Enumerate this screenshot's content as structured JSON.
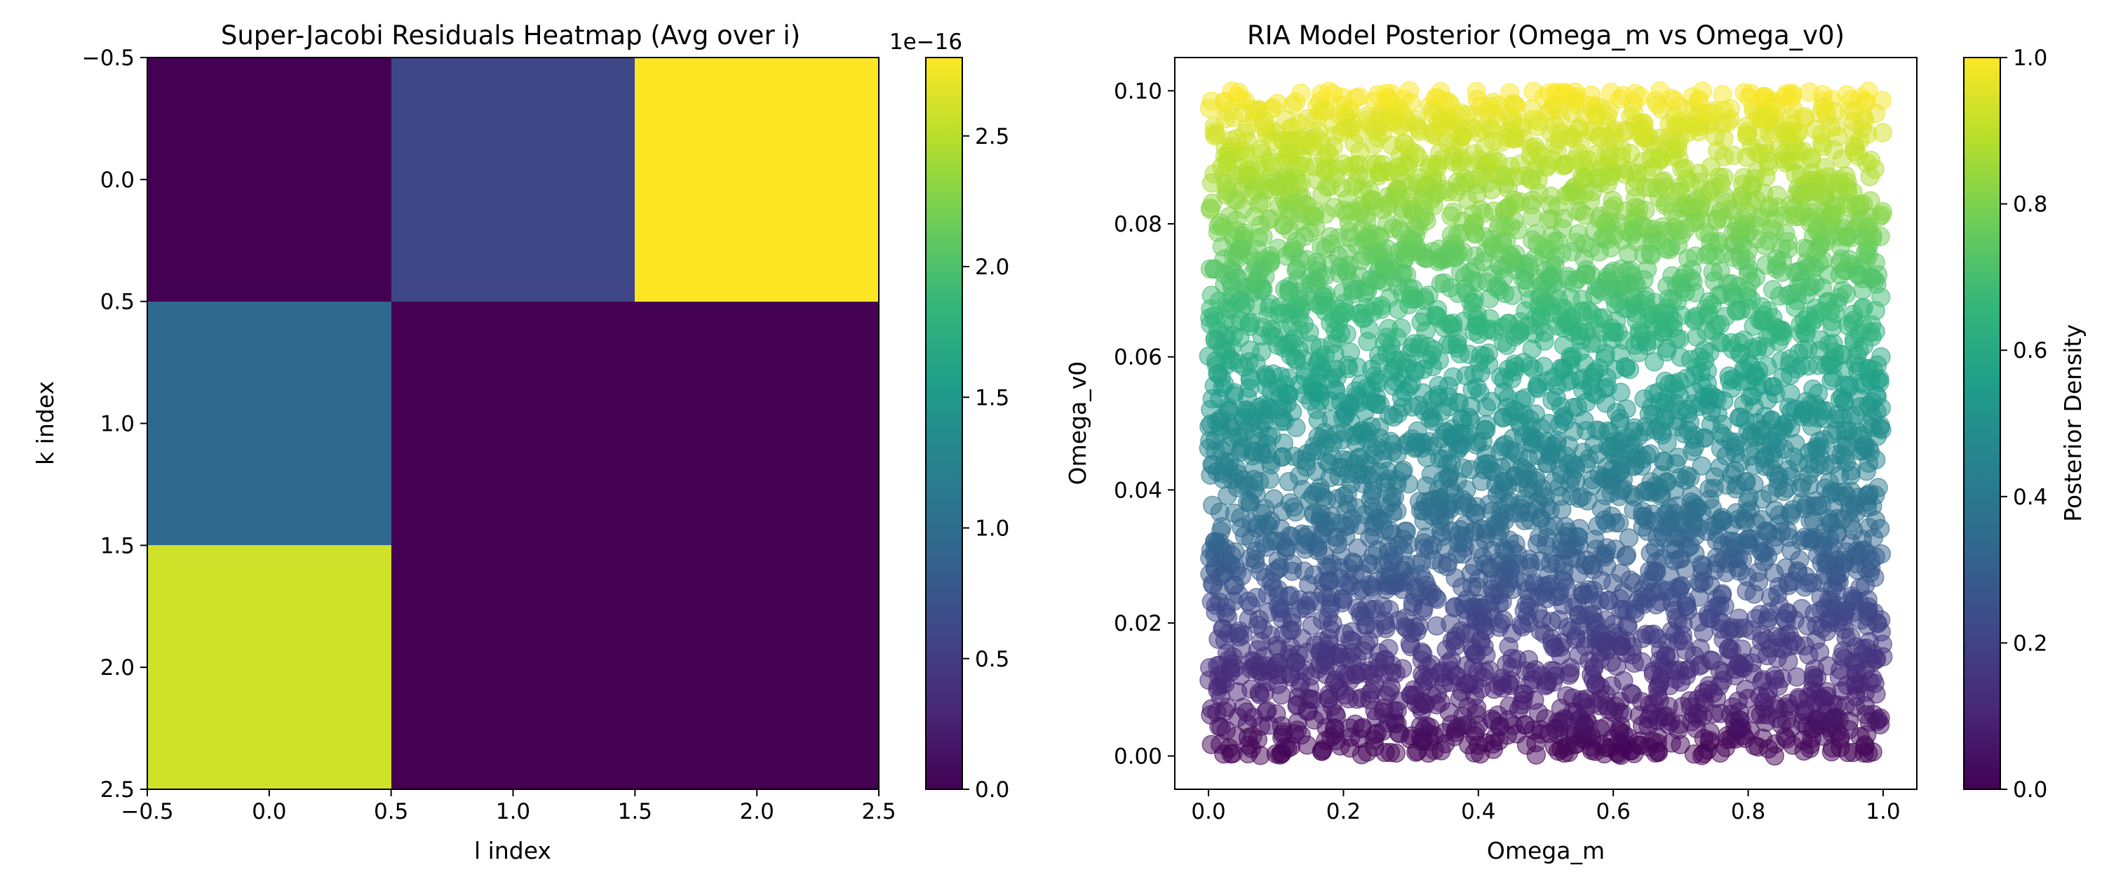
{
  "colormap": [
    "#440154",
    "#482878",
    "#3e4989",
    "#31688e",
    "#26828e",
    "#1f9e89",
    "#35b779",
    "#6ece58",
    "#b5de2b",
    "#fde725"
  ],
  "chart_data": [
    {
      "type": "heatmap",
      "title": "Super-Jacobi Residuals Heatmap (Avg over i)",
      "xlabel": "l index",
      "ylabel": "k index",
      "x_categories": [
        0,
        1,
        2
      ],
      "y_categories": [
        0,
        1,
        2
      ],
      "values": [
        [
          0.0,
          6e-17,
          2.8e-16
        ],
        [
          9.5e-17,
          0.0,
          0.0
        ],
        [
          2.6e-16,
          0.0,
          0.0
        ]
      ],
      "xlim": [
        -0.5,
        2.5
      ],
      "ylim": [
        2.5,
        -0.5
      ],
      "x_ticks": [
        "−0.5",
        "0.0",
        "0.5",
        "1.0",
        "1.5",
        "2.0",
        "2.5"
      ],
      "y_ticks": [
        "−0.5",
        "0.0",
        "0.5",
        "1.0",
        "1.5",
        "2.0",
        "2.5"
      ],
      "colorbar": {
        "range": [
          0,
          2.8e-16
        ],
        "ticks": [
          "0.0",
          "0.5",
          "1.0",
          "1.5",
          "2.0",
          "2.5"
        ],
        "tick_values": [
          0.0,
          0.5,
          1.0,
          1.5,
          2.0,
          2.5
        ],
        "scale_label": "1e−16",
        "max_scaled": 2.8
      }
    },
    {
      "type": "scatter",
      "title": "RIA Model Posterior (Omega_m vs Omega_v0)",
      "xlabel": "Omega_m",
      "ylabel": "Omega_v0",
      "x_range": [
        0.0,
        1.0
      ],
      "y_range": [
        0.0,
        0.1
      ],
      "n_points": 4500,
      "color_by": "Omega_v0 / 0.1",
      "x_ticks": [
        "0.0",
        "0.2",
        "0.4",
        "0.6",
        "0.8",
        "1.0"
      ],
      "y_ticks": [
        "0.00",
        "0.02",
        "0.04",
        "0.06",
        "0.08",
        "0.10"
      ],
      "xlim": [
        -0.05,
        1.05
      ],
      "ylim": [
        -0.005,
        0.105
      ],
      "colorbar": {
        "label": "Posterior Density",
        "range": [
          0.0,
          1.0
        ],
        "ticks": [
          "0.0",
          "0.2",
          "0.4",
          "0.6",
          "0.8",
          "1.0"
        ]
      }
    }
  ]
}
